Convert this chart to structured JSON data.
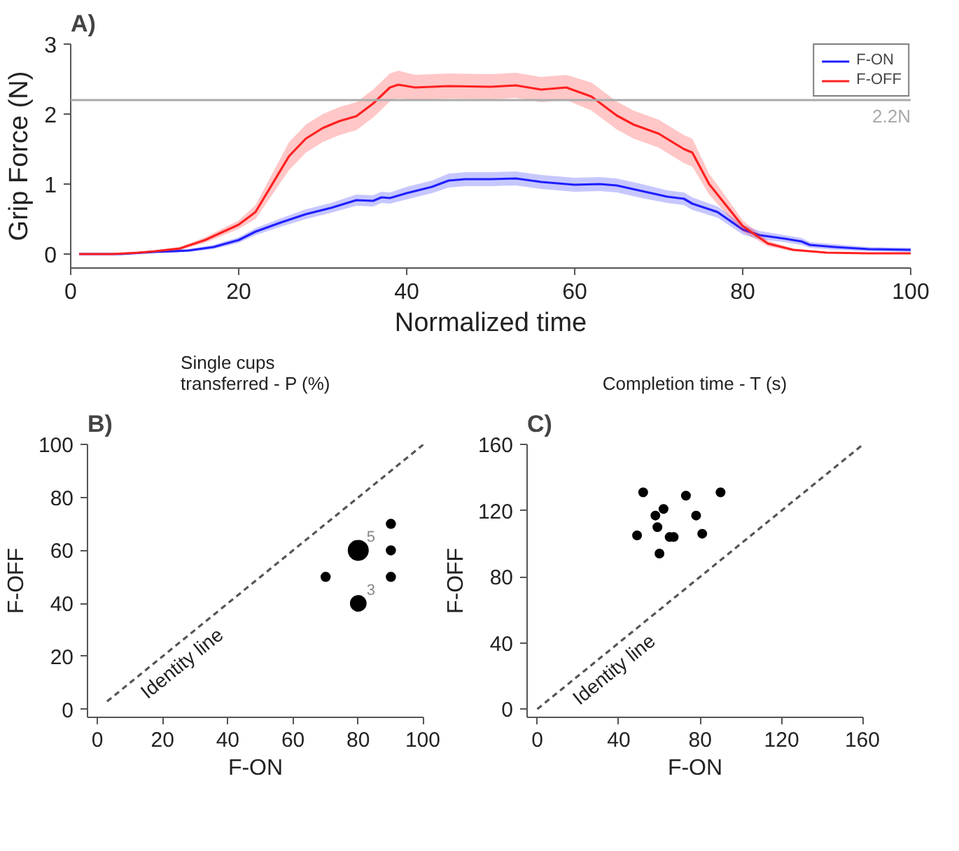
{
  "chart_data": [
    {
      "type": "line",
      "annotations": [
        "A)"
      ],
      "xlabel": "Normalized time",
      "ylabel": "Grip Force (N)",
      "xlim": [
        0,
        100
      ],
      "ylim": [
        -0.2,
        3
      ],
      "xticks": [
        0,
        20,
        40,
        60,
        80,
        100
      ],
      "yticks": [
        0,
        1,
        2,
        3
      ],
      "legend": "top right",
      "ref_lines": [
        {
          "axis": "y",
          "value": 2.2,
          "label": "2.2N",
          "color": "#aaaaaa"
        }
      ],
      "series": [
        {
          "name": "F-ON",
          "color": "#1f1fff",
          "x": [
            1,
            6,
            10,
            14,
            17,
            20,
            22,
            25,
            28,
            31,
            34,
            36,
            37,
            38,
            40,
            43,
            45,
            47,
            50,
            53,
            56,
            60,
            63,
            65,
            68,
            71,
            73,
            74,
            77,
            80,
            82,
            85,
            87,
            88,
            91,
            95,
            100
          ],
          "values": [
            0,
            0,
            0.03,
            0.05,
            0.1,
            0.2,
            0.32,
            0.45,
            0.57,
            0.66,
            0.77,
            0.76,
            0.81,
            0.8,
            0.87,
            0.96,
            1.05,
            1.07,
            1.07,
            1.08,
            1.03,
            0.99,
            1.0,
            0.98,
            0.9,
            0.82,
            0.79,
            0.72,
            0.6,
            0.35,
            0.27,
            0.22,
            0.18,
            0.13,
            0.1,
            0.07,
            0.06
          ],
          "lower": [
            0,
            0,
            0.02,
            0.03,
            0.07,
            0.16,
            0.27,
            0.39,
            0.5,
            0.59,
            0.69,
            0.68,
            0.73,
            0.72,
            0.78,
            0.87,
            0.95,
            0.97,
            0.97,
            0.98,
            0.93,
            0.89,
            0.9,
            0.88,
            0.8,
            0.73,
            0.7,
            0.63,
            0.52,
            0.28,
            0.21,
            0.17,
            0.13,
            0.09,
            0.06,
            0.04,
            0.03
          ],
          "upper": [
            0,
            0,
            0.04,
            0.07,
            0.13,
            0.24,
            0.37,
            0.51,
            0.64,
            0.73,
            0.85,
            0.84,
            0.89,
            0.88,
            0.96,
            1.05,
            1.15,
            1.17,
            1.17,
            1.18,
            1.13,
            1.09,
            1.1,
            1.08,
            1.0,
            0.91,
            0.88,
            0.81,
            0.68,
            0.42,
            0.33,
            0.27,
            0.23,
            0.17,
            0.14,
            0.1,
            0.09
          ]
        },
        {
          "name": "F-OFF",
          "color": "#ff2020",
          "x": [
            1,
            5,
            8,
            10,
            13,
            16,
            20,
            22,
            24,
            26,
            28,
            30,
            32,
            34,
            36,
            38,
            39,
            41,
            45,
            50,
            53,
            56,
            59,
            62,
            65,
            67,
            70,
            73,
            74,
            76,
            78,
            80,
            83,
            86,
            90,
            95,
            100
          ],
          "values": [
            0,
            0,
            0.02,
            0.04,
            0.08,
            0.2,
            0.42,
            0.6,
            1.0,
            1.4,
            1.65,
            1.8,
            1.9,
            1.97,
            2.15,
            2.38,
            2.42,
            2.38,
            2.4,
            2.39,
            2.41,
            2.35,
            2.38,
            2.25,
            1.98,
            1.85,
            1.72,
            1.5,
            1.45,
            1.0,
            0.7,
            0.4,
            0.15,
            0.06,
            0.02,
            0.01,
            0.01
          ],
          "lower": [
            0,
            0,
            0.01,
            0.03,
            0.06,
            0.16,
            0.36,
            0.5,
            0.85,
            1.2,
            1.45,
            1.6,
            1.7,
            1.77,
            1.95,
            2.18,
            2.22,
            2.2,
            2.22,
            2.21,
            2.23,
            2.17,
            2.2,
            2.05,
            1.78,
            1.65,
            1.52,
            1.3,
            1.25,
            0.85,
            0.58,
            0.32,
            0.11,
            0.04,
            0.01,
            0,
            0
          ],
          "upper": [
            0,
            0,
            0.03,
            0.05,
            0.1,
            0.24,
            0.48,
            0.7,
            1.15,
            1.6,
            1.85,
            2.0,
            2.1,
            2.17,
            2.35,
            2.58,
            2.62,
            2.56,
            2.58,
            2.57,
            2.59,
            2.53,
            2.56,
            2.45,
            2.18,
            2.05,
            1.92,
            1.7,
            1.65,
            1.15,
            0.82,
            0.48,
            0.19,
            0.08,
            0.03,
            0.02,
            0.02
          ]
        }
      ]
    },
    {
      "type": "bubble",
      "title": "Single cups\ntransferred - P (%)",
      "annotations": [
        "B)",
        {
          "text": "5",
          "x": 80,
          "y": 60
        },
        {
          "text": "3",
          "x": 80,
          "y": 40
        }
      ],
      "xlabel": "F-ON",
      "ylabel": "F-OFF",
      "xlim": [
        -3,
        100
      ],
      "ylim": [
        -3,
        100
      ],
      "xticks": [
        0,
        20,
        40,
        60,
        80,
        100
      ],
      "yticks": [
        0,
        20,
        40,
        60,
        80,
        100
      ],
      "series": [
        {
          "color": "#000000",
          "x": [
            80,
            80,
            70,
            90,
            90,
            90
          ],
          "values": [
            60,
            40,
            50,
            70,
            60,
            50
          ],
          "sizes": [
            1,
            0.6,
            0.2,
            0.2,
            0.2,
            0.2
          ]
        },
        {
          "type": "line",
          "name": "Identity line",
          "color": "#555555",
          "line_style": "dashed",
          "x": [
            3,
            100
          ],
          "values": [
            3,
            100
          ]
        }
      ]
    },
    {
      "type": "scatter",
      "title": "Completion time - T (s)",
      "annotations": [
        "C)"
      ],
      "xlabel": "F-ON",
      "ylabel": "F-OFF",
      "xlim": [
        -5,
        160
      ],
      "ylim": [
        -5,
        160
      ],
      "xticks": [
        0,
        40,
        80,
        120,
        160
      ],
      "yticks": [
        0,
        40,
        80,
        120,
        160
      ],
      "series": [
        {
          "marker": "circle",
          "color": "#000000",
          "x": [
            49,
            52,
            58,
            59,
            60,
            62,
            65,
            67,
            73,
            78,
            81,
            90
          ],
          "values": [
            105,
            131,
            117,
            110,
            94,
            121,
            104,
            104,
            129,
            117,
            106,
            131
          ]
        },
        {
          "type": "line",
          "name": "Identity line",
          "color": "#555555",
          "line_style": "dashed",
          "x": [
            0,
            160
          ],
          "values": [
            0,
            160
          ]
        }
      ]
    }
  ]
}
